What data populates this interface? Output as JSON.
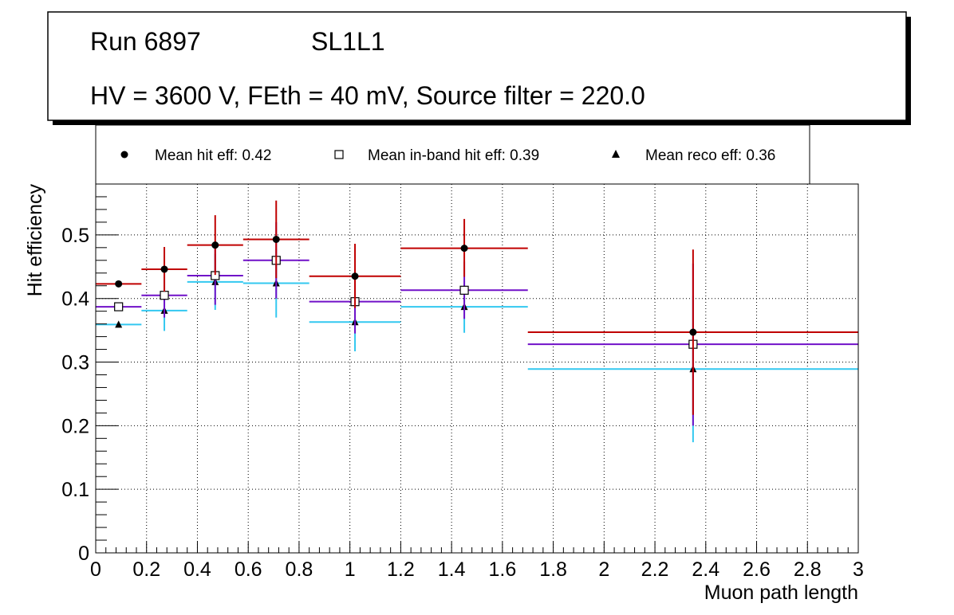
{
  "header": {
    "run": "Run 6897",
    "layer": "SL1L1",
    "conditions": "HV = 3600 V, FEth = 40 mV, Source filter = 220.0"
  },
  "chart_data": {
    "type": "scatter",
    "title": "",
    "xlabel": "Muon path length",
    "ylabel": "Hit efficiency",
    "xlim": [
      0,
      3
    ],
    "ylim": [
      0,
      0.58
    ],
    "grid": true,
    "legend_position": "top",
    "x_ticks": [
      "0",
      "0.2",
      "0.4",
      "0.6",
      "0.8",
      "1",
      "1.2",
      "1.4",
      "1.6",
      "1.8",
      "2",
      "2.2",
      "2.4",
      "2.6",
      "2.8",
      "3"
    ],
    "x_tick_values": [
      0,
      0.2,
      0.4,
      0.6,
      0.8,
      1,
      1.2,
      1.4,
      1.6,
      1.8,
      2,
      2.2,
      2.4,
      2.6,
      2.8,
      3
    ],
    "y_ticks": [
      "0",
      "0.1",
      "0.2",
      "0.3",
      "0.4",
      "0.5"
    ],
    "y_tick_values": [
      0,
      0.1,
      0.2,
      0.3,
      0.4,
      0.5
    ],
    "series": [
      {
        "name": "Mean hit  eff: 0.42",
        "color": "#c00000",
        "marker": "circle",
        "points": [
          {
            "x": 0.09,
            "xlo": 0.0,
            "xhi": 0.18,
            "y": 0.423,
            "ylo": 0.423,
            "yhi": 0.423
          },
          {
            "x": 0.27,
            "xlo": 0.18,
            "xhi": 0.36,
            "y": 0.446,
            "ylo": 0.411,
            "yhi": 0.481
          },
          {
            "x": 0.47,
            "xlo": 0.36,
            "xhi": 0.58,
            "y": 0.484,
            "ylo": 0.437,
            "yhi": 0.531
          },
          {
            "x": 0.71,
            "xlo": 0.58,
            "xhi": 0.84,
            "y": 0.493,
            "ylo": 0.432,
            "yhi": 0.554
          },
          {
            "x": 1.02,
            "xlo": 0.84,
            "xhi": 1.2,
            "y": 0.435,
            "ylo": 0.385,
            "yhi": 0.486
          },
          {
            "x": 1.45,
            "xlo": 1.2,
            "xhi": 1.7,
            "y": 0.479,
            "ylo": 0.434,
            "yhi": 0.525
          },
          {
            "x": 2.35,
            "xlo": 1.7,
            "xhi": 3.0,
            "y": 0.347,
            "ylo": 0.217,
            "yhi": 0.477
          }
        ]
      },
      {
        "name": "Mean in-band hit eff: 0.39",
        "color": "#7010c8",
        "marker": "open-square",
        "points": [
          {
            "x": 0.09,
            "xlo": 0.0,
            "xhi": 0.18,
            "y": 0.387,
            "ylo": 0.387,
            "yhi": 0.387
          },
          {
            "x": 0.27,
            "xlo": 0.18,
            "xhi": 0.36,
            "y": 0.405,
            "ylo": 0.37,
            "yhi": 0.44
          },
          {
            "x": 0.47,
            "xlo": 0.36,
            "xhi": 0.58,
            "y": 0.436,
            "ylo": 0.39,
            "yhi": 0.482
          },
          {
            "x": 0.71,
            "xlo": 0.58,
            "xhi": 0.84,
            "y": 0.46,
            "ylo": 0.4,
            "yhi": 0.52
          },
          {
            "x": 1.02,
            "xlo": 0.84,
            "xhi": 1.2,
            "y": 0.395,
            "ylo": 0.345,
            "yhi": 0.445
          },
          {
            "x": 1.45,
            "xlo": 1.2,
            "xhi": 1.7,
            "y": 0.413,
            "ylo": 0.368,
            "yhi": 0.458
          },
          {
            "x": 2.35,
            "xlo": 1.7,
            "xhi": 3.0,
            "y": 0.328,
            "ylo": 0.2,
            "yhi": 0.455
          }
        ]
      },
      {
        "name": "Mean reco eff: 0.36",
        "color": "#33c8f0",
        "marker": "triangle",
        "points": [
          {
            "x": 0.09,
            "xlo": 0.0,
            "xhi": 0.18,
            "y": 0.359,
            "ylo": 0.359,
            "yhi": 0.359
          },
          {
            "x": 0.27,
            "xlo": 0.18,
            "xhi": 0.36,
            "y": 0.381,
            "ylo": 0.349,
            "yhi": 0.414
          },
          {
            "x": 0.47,
            "xlo": 0.36,
            "xhi": 0.58,
            "y": 0.426,
            "ylo": 0.382,
            "yhi": 0.47
          },
          {
            "x": 0.71,
            "xlo": 0.58,
            "xhi": 0.84,
            "y": 0.424,
            "ylo": 0.37,
            "yhi": 0.478
          },
          {
            "x": 1.02,
            "xlo": 0.84,
            "xhi": 1.2,
            "y": 0.363,
            "ylo": 0.317,
            "yhi": 0.41
          },
          {
            "x": 1.45,
            "xlo": 1.2,
            "xhi": 1.7,
            "y": 0.387,
            "ylo": 0.346,
            "yhi": 0.428
          },
          {
            "x": 2.35,
            "xlo": 1.7,
            "xhi": 3.0,
            "y": 0.289,
            "ylo": 0.174,
            "yhi": 0.404
          }
        ]
      }
    ]
  }
}
